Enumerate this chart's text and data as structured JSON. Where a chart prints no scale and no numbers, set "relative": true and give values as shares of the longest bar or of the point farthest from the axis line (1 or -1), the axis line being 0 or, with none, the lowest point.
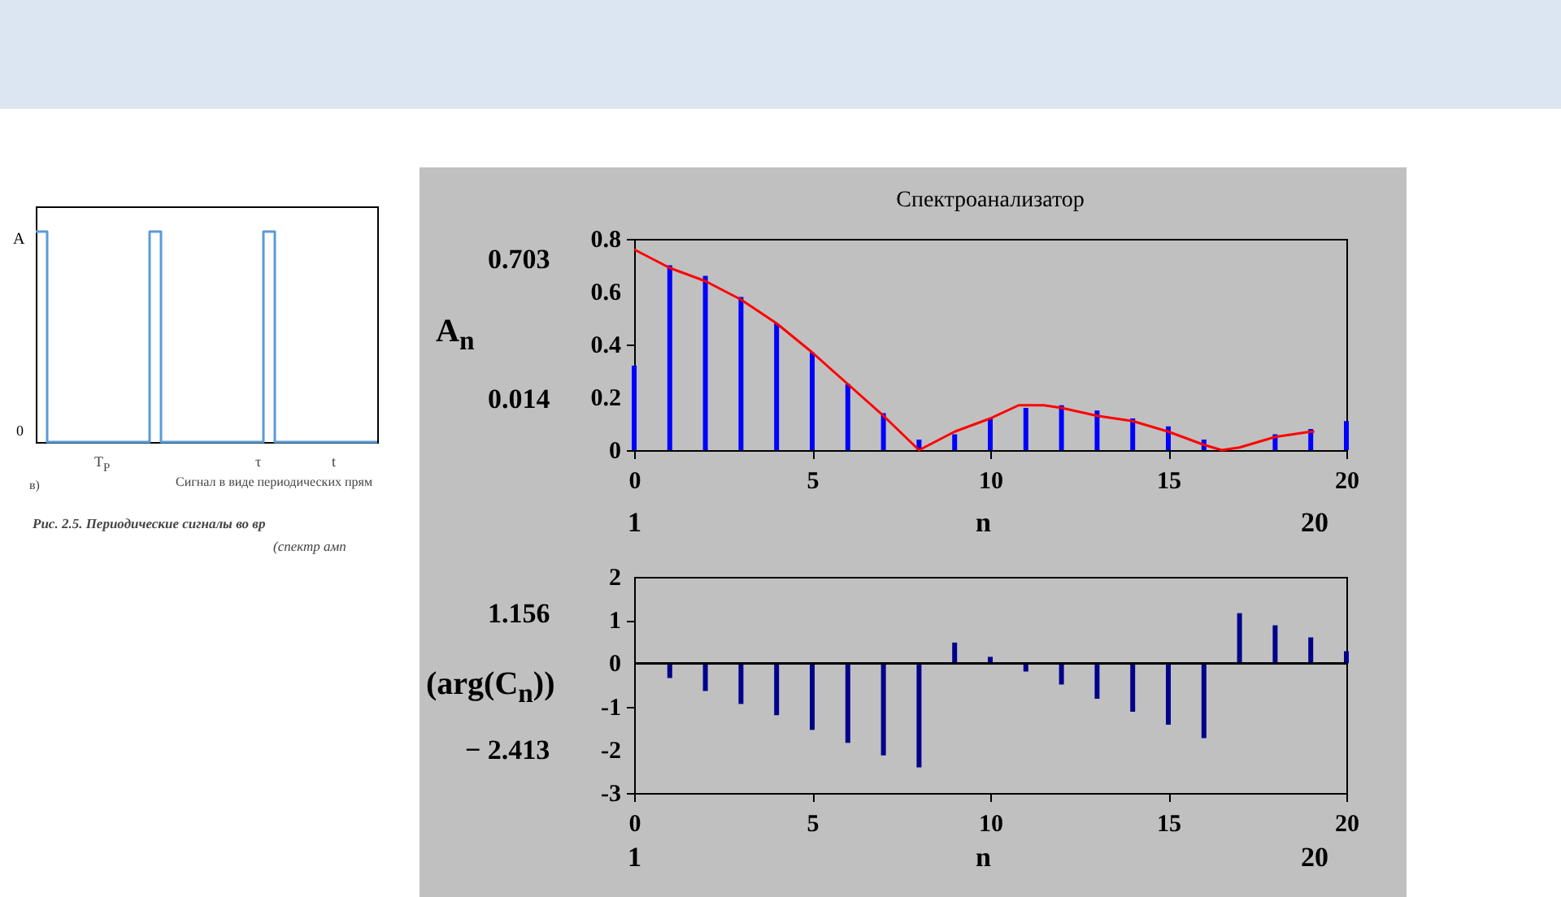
{
  "chart_data": [
    {
      "type": "step",
      "categories": [
        null,
        null,
        null,
        null,
        null,
        null,
        null,
        null,
        null,
        null,
        null,
        null,
        null,
        null,
        null,
        null,
        null,
        null,
        null,
        null,
        null,
        null,
        null,
        null,
        null,
        null,
        null,
        null,
        null,
        null,
        null
      ],
      "series": [
        {
          "color": "#5b9bd5",
          "values": [
            1,
            0,
            0,
            0,
            0,
            0,
            0,
            0,
            0,
            0,
            1,
            0,
            0,
            0,
            0,
            0,
            0,
            0,
            0,
            0,
            1,
            0,
            0,
            0,
            0,
            0,
            0,
            0,
            0,
            0,
            0
          ]
        }
      ],
      "relative": true,
      "grid": false,
      "annotations": [
        "T$_{P}$",
        "τ",
        "t",
        "в)",
        "Сигнал в виде периодических прям",
        "Рис. 2.5. Периодические сигналы во вр",
        "(спектр амп",
        "A",
        "0"
      ]
    },
    {
      "type": "bar",
      "title": "Спектроанализатор",
      "xlabel": "n",
      "ylabel": "A$_{n}$",
      "xlim": [
        0,
        20
      ],
      "xticks": [
        0,
        5,
        10,
        15,
        20
      ],
      "ylim": [
        0,
        0.8
      ],
      "yticks": [
        0,
        0.2,
        0.4,
        0.6,
        0.8
      ],
      "grid": false,
      "series": [
        {
          "color": "#0000ff",
          "x": [
            0,
            1,
            2,
            3,
            4,
            5,
            6,
            7,
            8,
            9,
            10,
            11,
            12,
            13,
            14,
            15,
            16,
            17,
            18,
            19,
            20
          ],
          "values": [
            0.32,
            0.7,
            0.66,
            0.58,
            0.48,
            0.37,
            0.25,
            0.14,
            0.04,
            0.06,
            0.12,
            0.16,
            0.17,
            0.15,
            0.12,
            0.09,
            0.04,
            0.0,
            0.06,
            0.08,
            0.11
          ]
        },
        {
          "type": "line",
          "color": "#ff0000",
          "x": [
            0,
            1,
            2,
            3,
            4,
            5,
            6,
            7,
            8,
            9,
            10,
            10.8,
            11.5,
            12,
            13,
            14,
            15,
            16,
            16.5,
            17,
            18,
            19,
            19.1
          ],
          "values": [
            0.76,
            0.69,
            0.64,
            0.57,
            0.48,
            0.37,
            0.25,
            0.13,
            0.0,
            0.07,
            0.12,
            0.17,
            0.17,
            0.16,
            0.13,
            0.11,
            0.07,
            0.02,
            0.0,
            0.01,
            0.05,
            0.07,
            0.07
          ]
        }
      ],
      "annotations": [
        "0.703",
        "0.014",
        "1",
        "20"
      ]
    },
    {
      "type": "bar",
      "xlabel": "n",
      "ylabel": "(arg(C$_{n}$))",
      "xlim": [
        0,
        20
      ],
      "xticks": [
        0,
        5,
        10,
        15,
        20
      ],
      "ylim": [
        -3,
        2
      ],
      "yticks": [
        -3,
        -2,
        -1,
        0,
        1,
        2
      ],
      "grid": false,
      "ref_lines": [
        {
          "axis": "y",
          "value": 0,
          "color": "#000000"
        }
      ],
      "series": [
        {
          "color": "#00008b",
          "x": [
            1,
            2,
            3,
            4,
            5,
            6,
            7,
            8,
            9,
            10,
            11,
            12,
            13,
            14,
            15,
            16,
            17,
            18,
            19,
            20
          ],
          "values": [
            -0.34,
            -0.64,
            -0.94,
            -1.2,
            -1.54,
            -1.84,
            -2.13,
            -2.41,
            0.48,
            0.15,
            -0.19,
            -0.49,
            -0.82,
            -1.12,
            -1.42,
            -1.73,
            1.16,
            0.88,
            0.6,
            0.28
          ]
        }
      ],
      "annotations": [
        "1.156",
        "− 2.413",
        "1",
        "20"
      ]
    }
  ]
}
